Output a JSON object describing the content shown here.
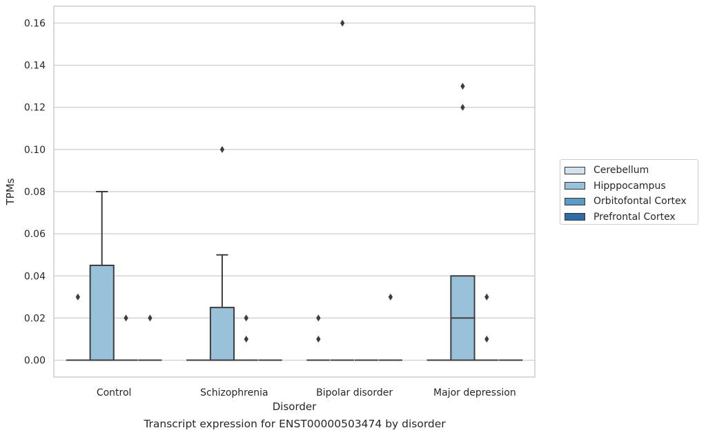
{
  "chart_data": {
    "type": "box",
    "xlabel": "Disorder",
    "ylabel": "TPMs",
    "caption": "Transcript expression for ENST00000503474 by disorder",
    "categories": [
      "Control",
      "Schizophrenia",
      "Bipolar disorder",
      "Major depression"
    ],
    "ylim": [
      -0.008,
      0.168
    ],
    "yticks": [
      "0.00",
      "0.02",
      "0.04",
      "0.06",
      "0.08",
      "0.10",
      "0.12",
      "0.14",
      "0.16"
    ],
    "grid": true,
    "legend_position": "right",
    "series": [
      {
        "name": "Cerebellum",
        "color": "#d2e3ef",
        "boxes": [
          {
            "q1": 0,
            "median": 0,
            "q3": 0,
            "whislo": 0,
            "whishi": 0,
            "outliers": [
              0.03
            ]
          },
          {
            "q1": 0,
            "median": 0,
            "q3": 0,
            "whislo": 0,
            "whishi": 0,
            "outliers": []
          },
          {
            "q1": 0,
            "median": 0,
            "q3": 0,
            "whislo": 0,
            "whishi": 0,
            "outliers": [
              0.02,
              0.01
            ]
          },
          {
            "q1": 0,
            "median": 0,
            "q3": 0,
            "whislo": 0,
            "whishi": 0,
            "outliers": []
          }
        ]
      },
      {
        "name": "Hipppocampus",
        "color": "#9ac1da",
        "boxes": [
          {
            "q1": 0,
            "median": 0,
            "q3": 0.045,
            "whislo": 0,
            "whishi": 0.08,
            "outliers": []
          },
          {
            "q1": 0,
            "median": 0,
            "q3": 0.025,
            "whislo": 0,
            "whishi": 0.05,
            "outliers": [
              0.1
            ]
          },
          {
            "q1": 0,
            "median": 0,
            "q3": 0,
            "whislo": 0,
            "whishi": 0,
            "outliers": [
              0.16
            ]
          },
          {
            "q1": 0,
            "median": 0.02,
            "q3": 0.04,
            "whislo": 0,
            "whishi": 0.04,
            "outliers": [
              0.13,
              0.12
            ]
          }
        ]
      },
      {
        "name": "Orbitofontal Cortex",
        "color": "#5a9bc5",
        "boxes": [
          {
            "q1": 0,
            "median": 0,
            "q3": 0,
            "whislo": 0,
            "whishi": 0,
            "outliers": [
              0.02
            ]
          },
          {
            "q1": 0,
            "median": 0,
            "q3": 0,
            "whislo": 0,
            "whishi": 0,
            "outliers": [
              0.02,
              0.01
            ]
          },
          {
            "q1": 0,
            "median": 0,
            "q3": 0,
            "whislo": 0,
            "whishi": 0,
            "outliers": []
          },
          {
            "q1": 0,
            "median": 0,
            "q3": 0,
            "whislo": 0,
            "whishi": 0,
            "outliers": [
              0.03,
              0.01
            ]
          }
        ]
      },
      {
        "name": "Prefrontal Cortex",
        "color": "#2e6ca6",
        "boxes": [
          {
            "q1": 0,
            "median": 0,
            "q3": 0,
            "whislo": 0,
            "whishi": 0,
            "outliers": [
              0.02
            ]
          },
          {
            "q1": 0,
            "median": 0,
            "q3": 0,
            "whislo": 0,
            "whishi": 0,
            "outliers": []
          },
          {
            "q1": 0,
            "median": 0,
            "q3": 0,
            "whislo": 0,
            "whishi": 0,
            "outliers": [
              0.03
            ]
          },
          {
            "q1": 0,
            "median": 0,
            "q3": 0,
            "whislo": 0,
            "whishi": 0,
            "outliers": []
          }
        ]
      }
    ]
  }
}
